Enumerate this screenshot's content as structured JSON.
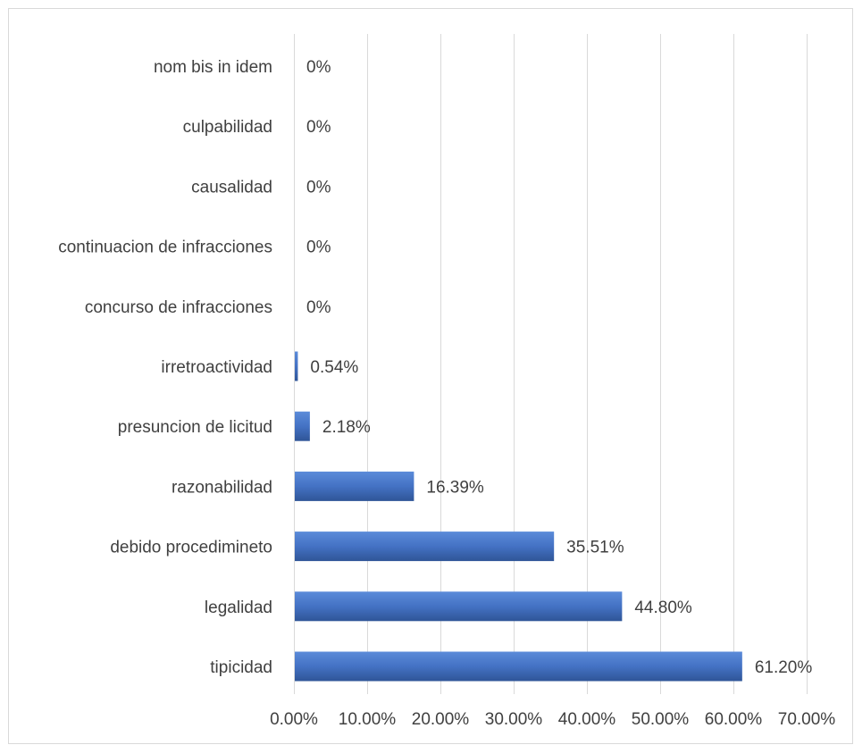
{
  "chart_data": {
    "type": "bar",
    "orientation": "horizontal",
    "categories": [
      "nom bis in idem",
      "culpabilidad",
      "causalidad",
      "continuacion de infracciones",
      "concurso de infracciones",
      "irretroactividad",
      "presuncion de licitud",
      "razonabilidad",
      "debido procedimineto",
      "legalidad",
      "tipicidad"
    ],
    "values": [
      0,
      0,
      0,
      0,
      0,
      0.54,
      2.18,
      16.39,
      35.51,
      44.8,
      61.2
    ],
    "data_labels": [
      "0%",
      "0%",
      "0%",
      "0%",
      "0%",
      "0.54%",
      "2.18%",
      "16.39%",
      "35.51%",
      "44.80%",
      "61.20%"
    ],
    "xlim": [
      0,
      70
    ],
    "x_ticks": [
      0,
      10,
      20,
      30,
      40,
      50,
      60,
      70
    ],
    "x_tick_labels": [
      "0.00%",
      "10.00%",
      "20.00%",
      "30.00%",
      "40.00%",
      "50.00%",
      "60.00%",
      "70.00%"
    ],
    "grid": true,
    "legend": "none",
    "title": "",
    "xlabel": "",
    "ylabel": "",
    "bar_color": "#4472c4",
    "bar_color_light": "#5b8bd9",
    "bar_color_dark": "#2f5597"
  }
}
